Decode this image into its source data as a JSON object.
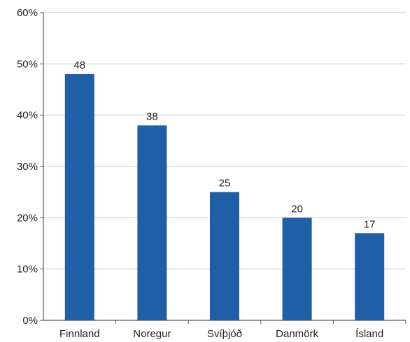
{
  "colors": {
    "bar": "#1f5fa8",
    "grid": "#c8c8c8",
    "axis": "#555555",
    "text": "#222222"
  },
  "chart_data": {
    "type": "bar",
    "categories": [
      "Finnland",
      "Noregur",
      "Svíþjóð",
      "Danmörk",
      "Ísland"
    ],
    "values": [
      48,
      38,
      25,
      20,
      17
    ],
    "data_labels": [
      "48",
      "38",
      "25",
      "20",
      "17"
    ],
    "title": "",
    "xlabel": "",
    "ylabel": "",
    "ylim": [
      0,
      60
    ],
    "yticks": [
      0,
      10,
      20,
      30,
      40,
      50,
      60
    ],
    "ytick_labels": [
      "0%",
      "10%",
      "20%",
      "30%",
      "40%",
      "50%",
      "60%"
    ],
    "grid": true,
    "legend": "none"
  }
}
